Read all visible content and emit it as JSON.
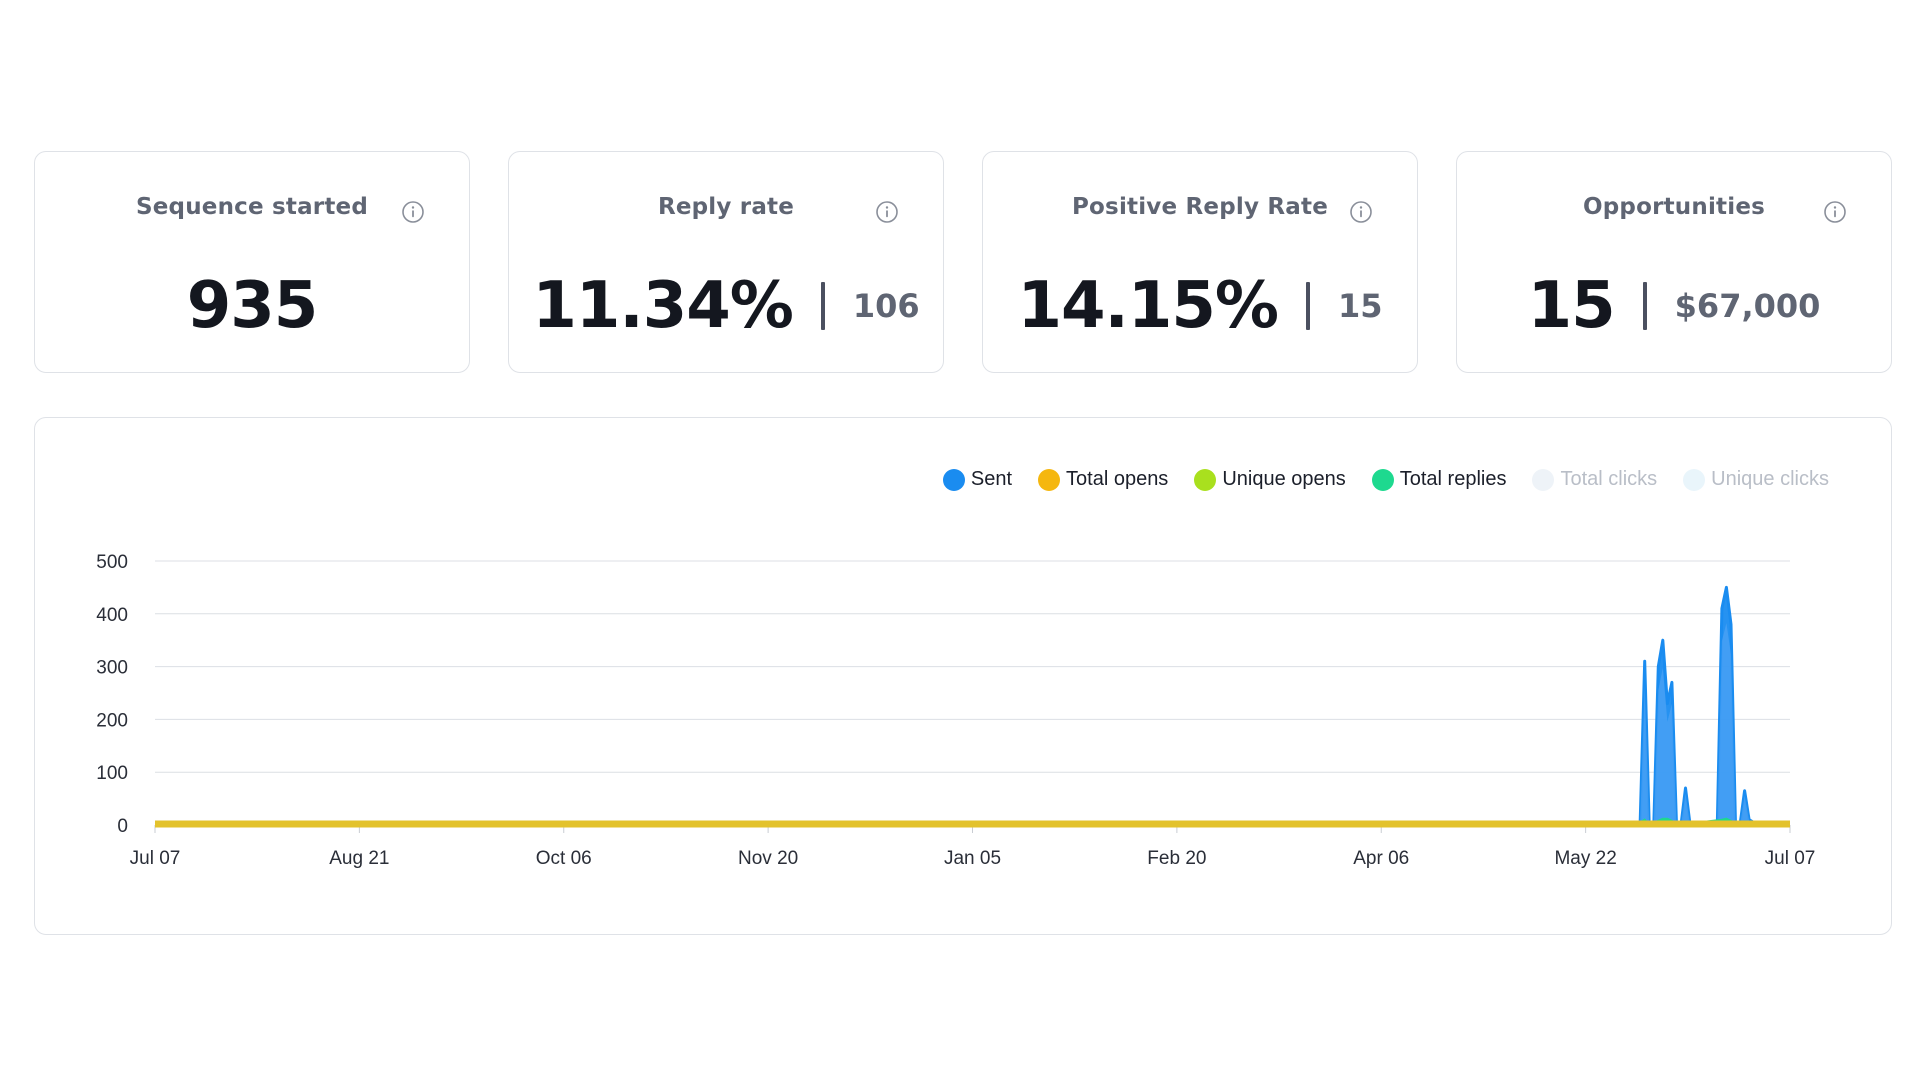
{
  "stats": [
    {
      "title": "Sequence started",
      "value": "935",
      "secondary": null
    },
    {
      "title": "Reply rate",
      "value": "11.34%",
      "secondary": "106"
    },
    {
      "title": "Positive Reply Rate",
      "value": "14.15%",
      "secondary": "15"
    },
    {
      "title": "Opportunities",
      "value": "15",
      "secondary": "$67,000"
    }
  ],
  "icons": {
    "info": "info-circle-icon"
  },
  "colors": {
    "sent": "#1a8cf0",
    "total_opens": "#f5b70f",
    "unique_opens": "#a9e01e",
    "total_replies": "#1ed98f",
    "total_clicks": "#eef3f8",
    "unique_clicks": "#e9f5fb",
    "baseline": "#e3c22c"
  },
  "chart_data": {
    "type": "area",
    "legend_position": "top-right",
    "grid": true,
    "ylim": [
      0,
      500
    ],
    "y_ticks": [
      "0",
      "100",
      "200",
      "300",
      "400",
      "500"
    ],
    "x_tick_labels": [
      "Jul 07",
      "Aug 21",
      "Oct 06",
      "Nov 20",
      "Jan 05",
      "Feb 20",
      "Apr 06",
      "May 22",
      "Jul 07"
    ],
    "x_range_days": [
      0,
      360
    ],
    "legend": [
      {
        "key": "sent",
        "name": "Sent",
        "active": true
      },
      {
        "key": "total_opens",
        "name": "Total opens",
        "active": true
      },
      {
        "key": "unique_opens",
        "name": "Unique opens",
        "active": true
      },
      {
        "key": "total_replies",
        "name": "Total replies",
        "active": true
      },
      {
        "key": "total_clicks",
        "name": "Total clicks",
        "active": false
      },
      {
        "key": "unique_clicks",
        "name": "Unique clicks",
        "active": false
      }
    ],
    "series": [
      {
        "name": "Sent",
        "points": [
          [
            326,
            0
          ],
          [
            327,
            0
          ],
          [
            328,
            310
          ],
          [
            329,
            0
          ],
          [
            330,
            0
          ],
          [
            331,
            300
          ],
          [
            332,
            350
          ],
          [
            333,
            230
          ],
          [
            334,
            270
          ],
          [
            335,
            0
          ],
          [
            336,
            0
          ],
          [
            337,
            70
          ],
          [
            338,
            0
          ],
          [
            344,
            0
          ],
          [
            345,
            410
          ],
          [
            346,
            450
          ],
          [
            347,
            380
          ],
          [
            348,
            0
          ],
          [
            349,
            0
          ],
          [
            350,
            65
          ],
          [
            351,
            10
          ],
          [
            352,
            5
          ],
          [
            353,
            0
          ]
        ]
      },
      {
        "name": "Total replies",
        "points": [
          [
            326,
            0
          ],
          [
            328,
            10
          ],
          [
            329,
            0
          ],
          [
            331,
            8
          ],
          [
            332,
            12
          ],
          [
            333,
            12
          ],
          [
            334,
            8
          ],
          [
            335,
            0
          ],
          [
            345,
            10
          ],
          [
            346,
            12
          ],
          [
            347,
            8
          ],
          [
            348,
            0
          ]
        ]
      }
    ]
  }
}
